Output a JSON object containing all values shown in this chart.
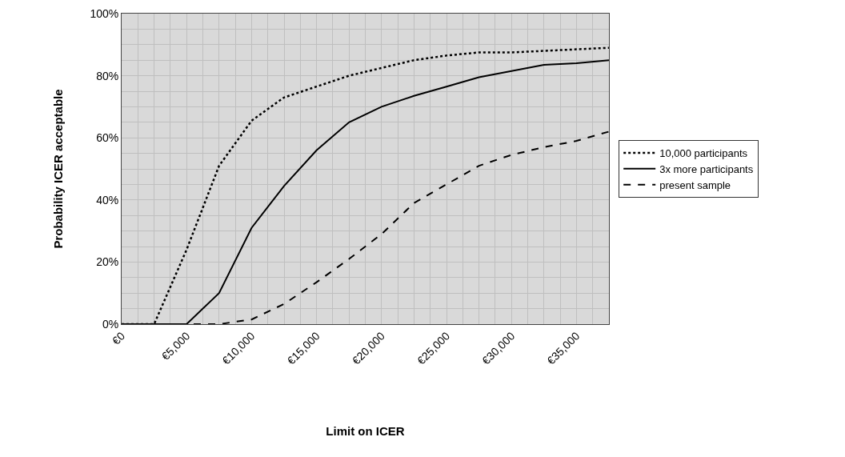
{
  "chart_data": {
    "type": "line",
    "xlabel": "Limit on ICER",
    "ylabel": "Probability ICER acceptable",
    "x": [
      0,
      2500,
      5000,
      7500,
      10000,
      12500,
      15000,
      17500,
      20000,
      22500,
      25000,
      27500,
      30000,
      32500,
      35000,
      37500
    ],
    "series": [
      {
        "name": "10,000 participants",
        "color": "#000000",
        "line_style": "dotted",
        "values": [
          0,
          0,
          24,
          51,
          65.5,
          73,
          76.5,
          80,
          82.5,
          85,
          86.5,
          87.5,
          87.5,
          88,
          88.5,
          89
        ]
      },
      {
        "name": "3x more participants",
        "color": "#000000",
        "line_style": "solid",
        "values": [
          0,
          0,
          0,
          10,
          31,
          44.5,
          56,
          65,
          70,
          73.5,
          76.5,
          79.5,
          81.5,
          83.5,
          84,
          85
        ]
      },
      {
        "name": "present sample",
        "color": "#000000",
        "line_style": "dashed",
        "values": [
          0,
          0,
          0,
          0,
          1.5,
          6.5,
          13.5,
          21,
          29,
          39,
          45,
          51,
          54.5,
          57,
          59,
          62
        ]
      }
    ],
    "xlim": [
      0,
      37500
    ],
    "xticks": [
      {
        "value": 0,
        "label": "€0"
      },
      {
        "value": 5000,
        "label": "€5,000"
      },
      {
        "value": 10000,
        "label": "€10,000"
      },
      {
        "value": 15000,
        "label": "€15,000"
      },
      {
        "value": 20000,
        "label": "€20,000"
      },
      {
        "value": 25000,
        "label": "€25,000"
      },
      {
        "value": 30000,
        "label": "€30,000"
      },
      {
        "value": 35000,
        "label": "€35,000"
      }
    ],
    "ylim": [
      0,
      100
    ],
    "yticks": [
      {
        "value": 0,
        "label": "0%"
      },
      {
        "value": 20,
        "label": "20%"
      },
      {
        "value": 40,
        "label": "40%"
      },
      {
        "value": 60,
        "label": "60%"
      },
      {
        "value": 80,
        "label": "80%"
      },
      {
        "value": 100,
        "label": "100%"
      }
    ],
    "grid": true,
    "legend": "right"
  }
}
